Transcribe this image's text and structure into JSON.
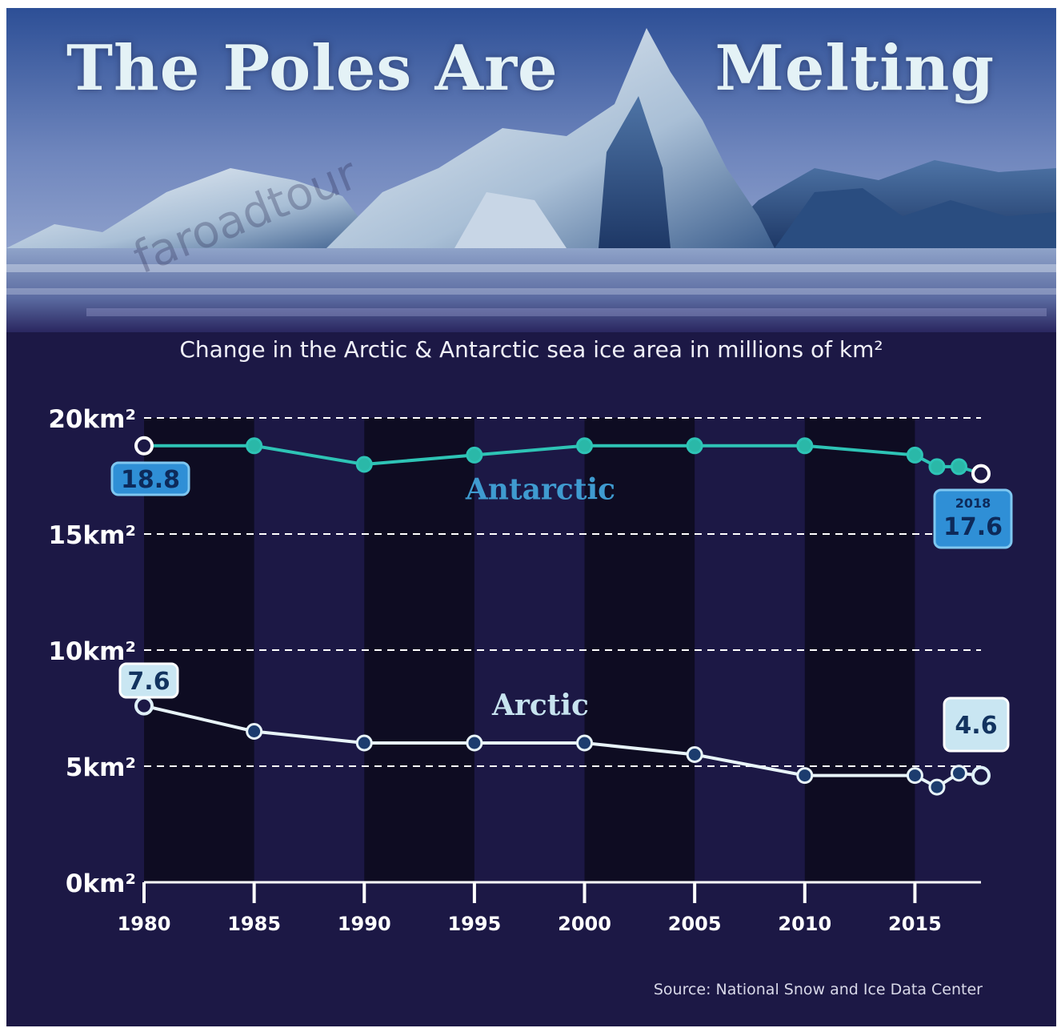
{
  "header": {
    "title_left": "The Poles Are",
    "title_right": "Melting",
    "watermark": "faroadtour"
  },
  "colors": {
    "background": "#1c1845",
    "antarctic": "#2ec4b6",
    "arctic": "#e8f4f8",
    "label_box": "#2f8fd6",
    "arctic_box": "#c9e6f2"
  },
  "chart_data": {
    "type": "line",
    "title": "Change in the Arctic & Antarctic sea ice area in millions of km²",
    "ylim": [
      0,
      20
    ],
    "y_ticks": [
      {
        "value": 0,
        "label": "0km²"
      },
      {
        "value": 5,
        "label": "5km²"
      },
      {
        "value": 10,
        "label": "10km²"
      },
      {
        "value": 15,
        "label": "15km²"
      },
      {
        "value": 20,
        "label": "20km²"
      }
    ],
    "x_ticks": [
      1980,
      1985,
      1990,
      1995,
      2000,
      2005,
      2010,
      2015
    ],
    "xlim": [
      1980,
      2018
    ],
    "grid": true,
    "series": [
      {
        "name": "Antarctic",
        "points": [
          {
            "x": 1980,
            "y": 18.8
          },
          {
            "x": 1985,
            "y": 18.8
          },
          {
            "x": 1990,
            "y": 18.0
          },
          {
            "x": 1995,
            "y": 18.4
          },
          {
            "x": 2000,
            "y": 18.8
          },
          {
            "x": 2005,
            "y": 18.8
          },
          {
            "x": 2010,
            "y": 18.8
          },
          {
            "x": 2015,
            "y": 18.4
          },
          {
            "x": 2016,
            "y": 17.9
          },
          {
            "x": 2017,
            "y": 17.9
          },
          {
            "x": 2018,
            "y": 17.6
          }
        ],
        "labels": [
          {
            "year": "",
            "value": "18.8"
          },
          {
            "year": "2018",
            "value": "17.6"
          }
        ]
      },
      {
        "name": "Arctic",
        "points": [
          {
            "x": 1980,
            "y": 7.6
          },
          {
            "x": 1985,
            "y": 6.5
          },
          {
            "x": 1990,
            "y": 6.0
          },
          {
            "x": 1995,
            "y": 6.0
          },
          {
            "x": 2000,
            "y": 6.0
          },
          {
            "x": 2005,
            "y": 5.5
          },
          {
            "x": 2010,
            "y": 4.6
          },
          {
            "x": 2015,
            "y": 4.6
          },
          {
            "x": 2016,
            "y": 4.1
          },
          {
            "x": 2017,
            "y": 4.7
          },
          {
            "x": 2018,
            "y": 4.6
          }
        ],
        "labels": [
          {
            "year": "",
            "value": "7.6"
          },
          {
            "year": "",
            "value": "4.6"
          }
        ]
      }
    ],
    "source": "Source: National Snow and Ice Data Center"
  }
}
